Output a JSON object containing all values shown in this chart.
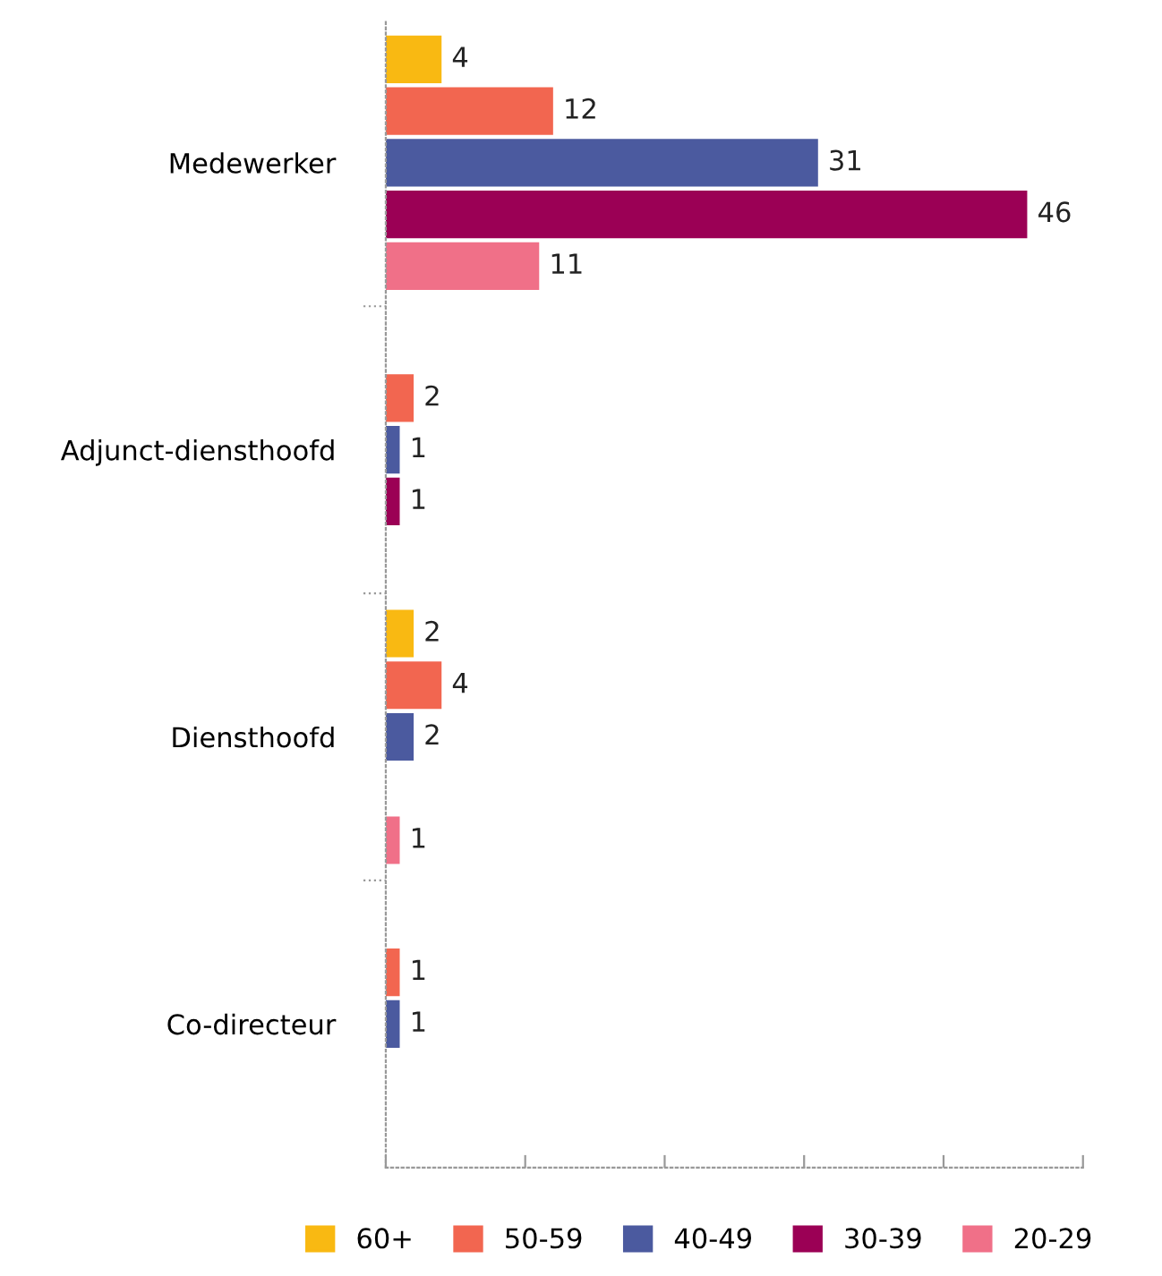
{
  "chart_data": {
    "type": "bar",
    "orientation": "horizontal",
    "categories": [
      "Medewerker",
      "Adjunct-diensthoofd",
      "Diensthoofd",
      "Co-directeur"
    ],
    "series": [
      {
        "name": "60+",
        "color": "#f9b912",
        "values": [
          4,
          null,
          2,
          null
        ]
      },
      {
        "name": "50-59",
        "color": "#f26650",
        "values": [
          12,
          2,
          4,
          1
        ]
      },
      {
        "name": "40-49",
        "color": "#4b5a9f",
        "values": [
          31,
          1,
          2,
          1
        ]
      },
      {
        "name": "30-39",
        "color": "#9b0055",
        "values": [
          46,
          1,
          null,
          null
        ]
      },
      {
        "name": "20-29",
        "color": "#f07088",
        "values": [
          11,
          null,
          1,
          null
        ]
      }
    ],
    "xlim": [
      0,
      50
    ],
    "xticks": [
      {
        "value": 0,
        "label": null
      },
      {
        "value": 10,
        "label": null
      },
      {
        "value": 20,
        "label": null
      },
      {
        "value": 30,
        "label": null
      },
      {
        "value": 40,
        "label": null
      },
      {
        "value": 50,
        "label": null
      }
    ],
    "tick_labels": "y",
    "data_labels": true,
    "grid": false,
    "legend": "bottom"
  }
}
